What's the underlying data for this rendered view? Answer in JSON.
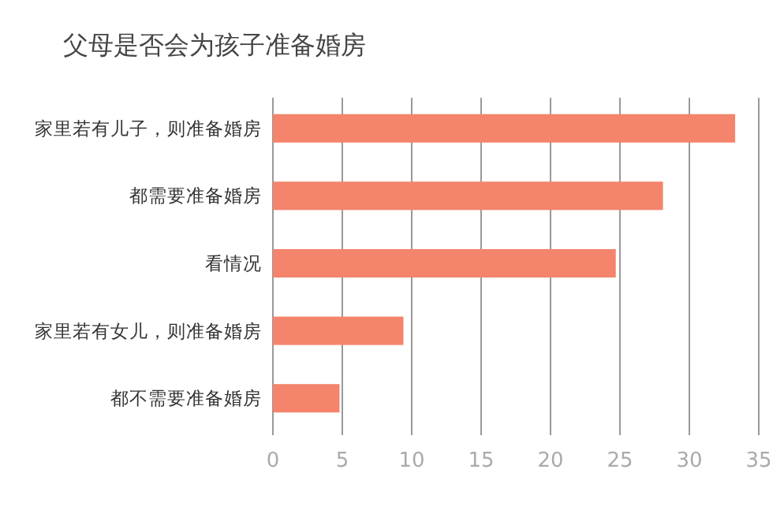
{
  "chart_data": {
    "type": "bar",
    "orientation": "horizontal",
    "title": "父母是否会为孩子准备婚房",
    "categories": [
      "家里若有儿子，则准备婚房",
      "都需要准备婚房",
      "看情况",
      "家里若有女儿，则准备婚房",
      "都不需要准备婚房"
    ],
    "values": [
      33.3,
      28.1,
      24.7,
      9.4,
      4.8
    ],
    "color": "#f4846c",
    "xlim": [
      0,
      35
    ],
    "xticks": [
      0,
      5,
      10,
      15,
      20,
      25,
      30,
      35
    ],
    "grid": "x"
  }
}
